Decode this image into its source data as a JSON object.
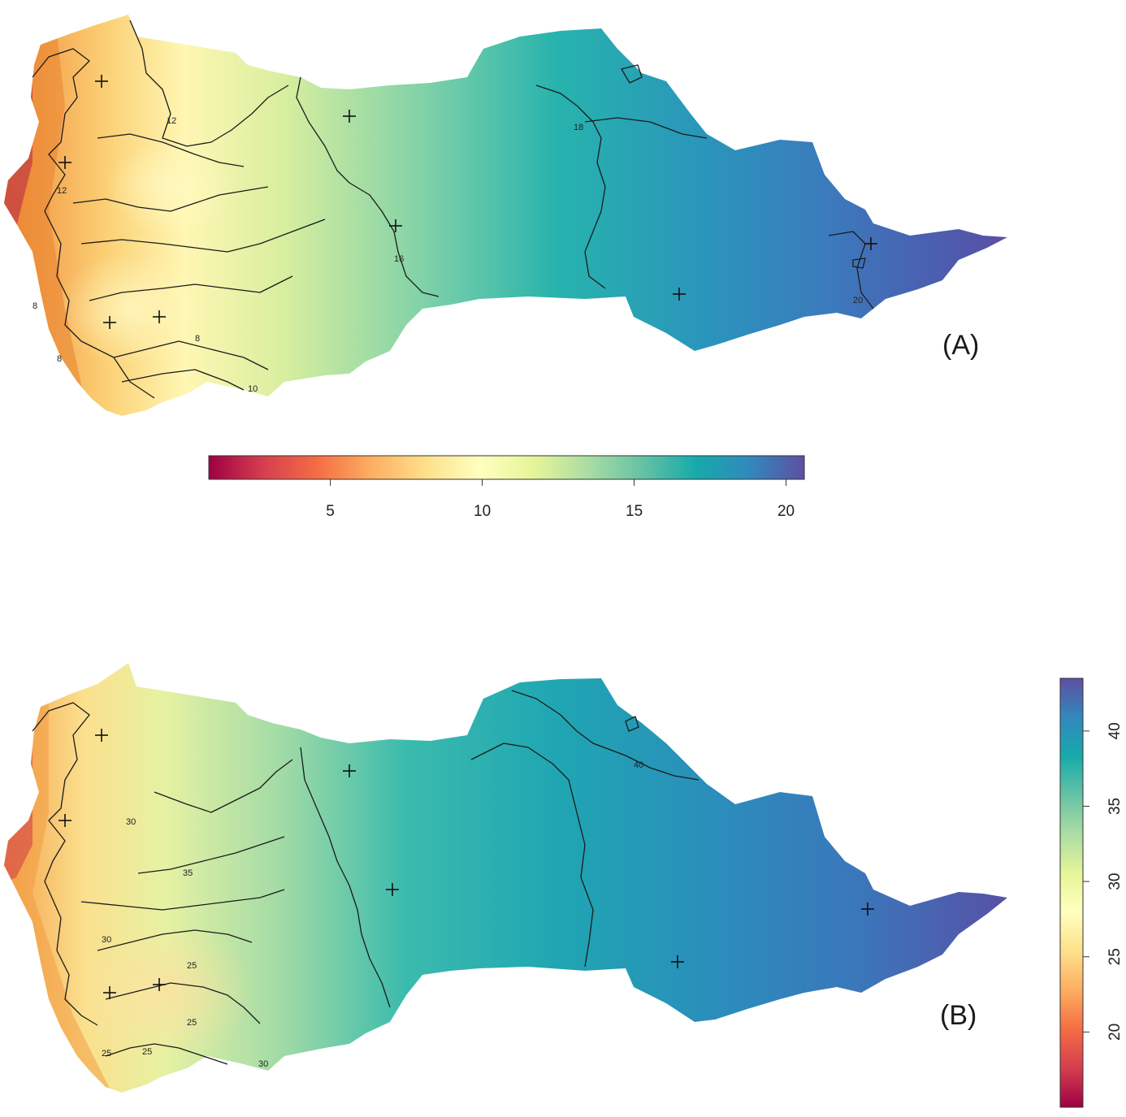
{
  "panels": [
    {
      "label": "(A)",
      "colorbar": {
        "orientation": "horizontal",
        "min": 1,
        "max": 20.6,
        "ticks": [
          "5",
          "10",
          "15",
          "20"
        ],
        "tick_values": [
          5,
          10,
          15,
          20
        ]
      },
      "contour_labels": [
        "12",
        "12",
        "16",
        "18",
        "20",
        "8",
        "8",
        "10",
        "8"
      ]
    },
    {
      "label": "(B)",
      "colorbar": {
        "orientation": "vertical",
        "min": 15,
        "max": 43.5,
        "ticks": [
          "20",
          "25",
          "30",
          "35",
          "40"
        ],
        "tick_values": [
          20,
          25,
          30,
          35,
          40
        ]
      },
      "contour_labels": [
        "30",
        "35",
        "40",
        "30",
        "25",
        "25",
        "25",
        "25",
        "30"
      ]
    }
  ],
  "palette": [
    "#9e0142",
    "#d53e4f",
    "#f46d43",
    "#fdae61",
    "#fee08b",
    "#ffffbf",
    "#e6f598",
    "#abdda4",
    "#66c2a5",
    "#17aaaa",
    "#3288bd",
    "#5e4fa2"
  ]
}
